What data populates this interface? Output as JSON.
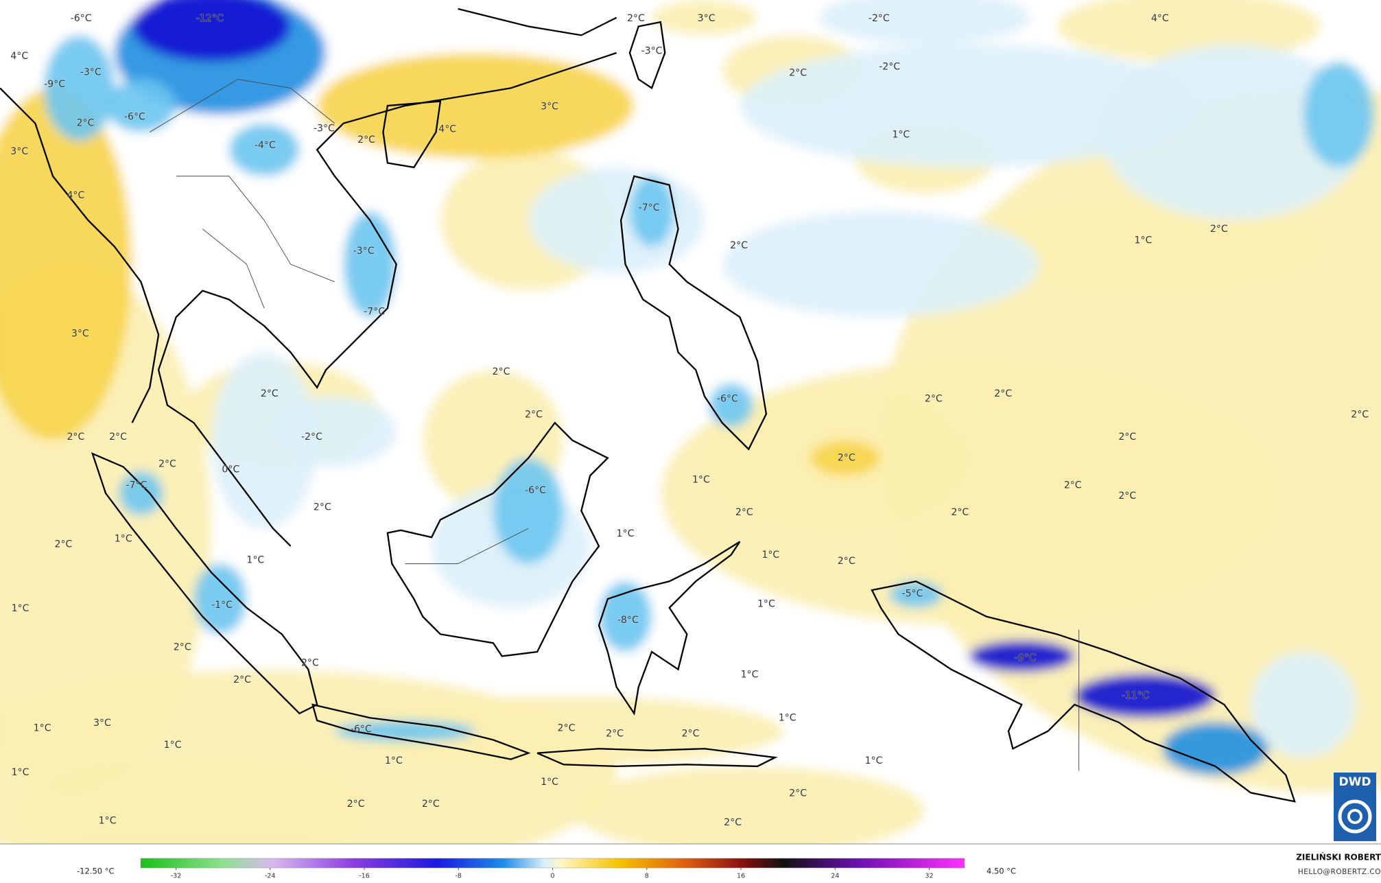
{
  "map": {
    "labels": [
      "-12°C",
      "-6°C",
      "4°C",
      "-3°C",
      "-9°C",
      "-6°C",
      "2°C",
      "3°C",
      "4°C",
      "2°C",
      "3°C",
      "-2°C",
      "4°C",
      "-3°C",
      "2°C",
      "-2°C",
      "3°C",
      "4°C",
      "-3°C",
      "2°C",
      "-4°C",
      "1°C",
      "-7°C",
      "2°C",
      "1°C",
      "2°C",
      "-3°C",
      "-7°C",
      "3°C",
      "2°C",
      "2°C",
      "2°C",
      "2°C",
      "-6°C",
      "2°C",
      "2°C",
      "2°C",
      "2°C",
      "-2°C",
      "2°C",
      "2°C",
      "2°C",
      "0°C",
      "-7°C",
      "-6°C",
      "1°C",
      "2°C",
      "2°C",
      "2°C",
      "2°C",
      "2°C",
      "1°C",
      "1°C",
      "2°C",
      "1°C",
      "1°C",
      "2°C",
      "-5°C",
      "1°C",
      "-1°C",
      "1°C",
      "-8°C",
      "2°C",
      "-9°C",
      "2°C",
      "1°C",
      "2°C",
      "-11°C",
      "1°C",
      "3°C",
      "1°C",
      "-6°C",
      "2°C",
      "2°C",
      "2°C",
      "1°C",
      "1°C",
      "1°C",
      "1°C",
      "1°C",
      "2°C",
      "2°C",
      "2°C",
      "1°C",
      "2°C"
    ],
    "colorbar": {
      "min_label": "-12.50 °C",
      "max_label": "4.50 °C",
      "lim": [
        -35,
        35
      ],
      "ticks": [
        -32,
        -24,
        -16,
        -8,
        0,
        8,
        16,
        24,
        32
      ]
    },
    "credit": {
      "author": "ZIELIŃSKI ROBERT",
      "contact": "HELLO@ROBERTZ.CO",
      "logo": "DWD"
    }
  }
}
